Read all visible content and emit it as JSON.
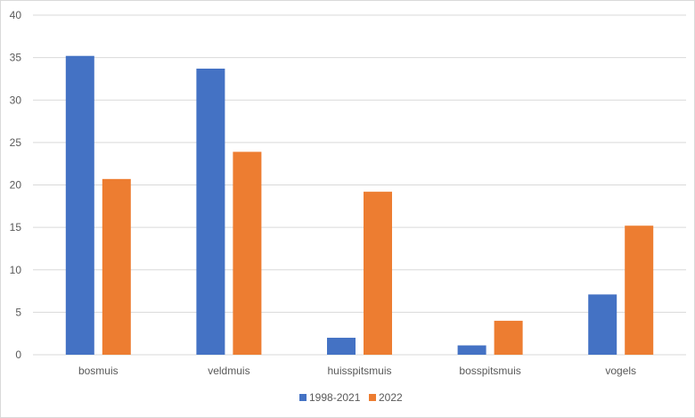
{
  "chart_data": {
    "type": "bar",
    "categories": [
      "bosmuis",
      "veldmuis",
      "huisspitsmuis",
      "bosspitsmuis",
      "vogels"
    ],
    "series": [
      {
        "name": "1998-2021",
        "values": [
          35.2,
          33.7,
          2.0,
          1.1,
          7.1
        ],
        "color": "#4472C4"
      },
      {
        "name": "2022",
        "values": [
          20.7,
          23.9,
          19.2,
          4.0,
          15.2
        ],
        "color": "#ED7D31"
      }
    ],
    "ylim": [
      0,
      40
    ],
    "yticks": [
      "0",
      "5",
      "10",
      "15",
      "20",
      "25",
      "30",
      "35",
      "40"
    ],
    "grid": true,
    "gridline_color": "#d9d9d9",
    "legend_position": "bottom"
  }
}
